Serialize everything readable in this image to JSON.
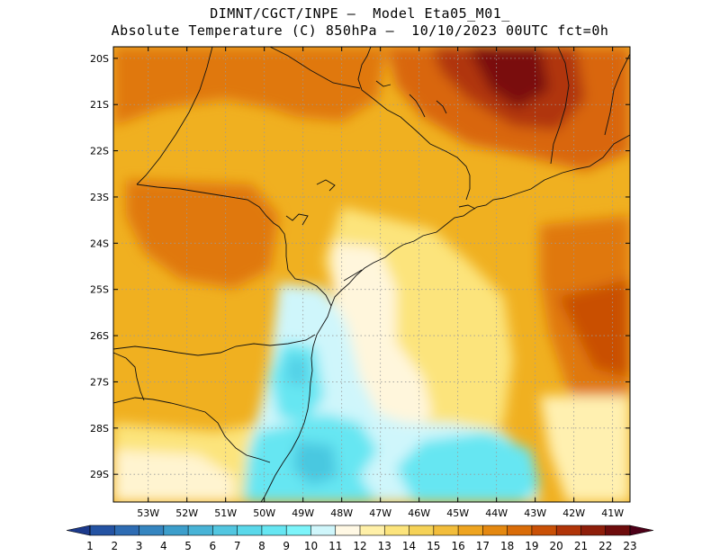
{
  "header": {
    "line1": "DIMNT/CGCT/INPE —  Model Eta05_M01_",
    "line2": "Absolute Temperature (C) 850hPa —  10/10/2023 00UTC fct=0h"
  },
  "map": {
    "lon_range": [
      -53.9,
      -40.55
    ],
    "lat_range": [
      -29.6,
      -19.75
    ],
    "lon_ticks": [
      {
        "lon": -53,
        "label": "53W"
      },
      {
        "lon": -52,
        "label": "52W"
      },
      {
        "lon": -51,
        "label": "51W"
      },
      {
        "lon": -50,
        "label": "50W"
      },
      {
        "lon": -49,
        "label": "49W"
      },
      {
        "lon": -48,
        "label": "48W"
      },
      {
        "lon": -47,
        "label": "47W"
      },
      {
        "lon": -46,
        "label": "46W"
      },
      {
        "lon": -45,
        "label": "45W"
      },
      {
        "lon": -44,
        "label": "44W"
      },
      {
        "lon": -43,
        "label": "43W"
      },
      {
        "lon": -42,
        "label": "42W"
      },
      {
        "lon": -41,
        "label": "41W"
      }
    ],
    "lat_ticks": [
      {
        "lat": -20,
        "label": "20S"
      },
      {
        "lat": -21,
        "label": "21S"
      },
      {
        "lat": -22,
        "label": "22S"
      },
      {
        "lat": -23,
        "label": "23S"
      },
      {
        "lat": -24,
        "label": "24S"
      },
      {
        "lat": -25,
        "label": "25S"
      },
      {
        "lat": -26,
        "label": "26S"
      },
      {
        "lat": -27,
        "label": "27S"
      },
      {
        "lat": -28,
        "label": "28S"
      },
      {
        "lat": -29,
        "label": "29S"
      }
    ],
    "grid_lines": "dotted",
    "background_color": "#f0b020"
  },
  "colorbar": {
    "labels": [
      "1",
      "2",
      "3",
      "4",
      "5",
      "6",
      "7",
      "8",
      "9",
      "10",
      "11",
      "12",
      "13",
      "14",
      "15",
      "16",
      "17",
      "18",
      "19",
      "20",
      "21",
      "22",
      "23"
    ],
    "colors": [
      "#1c3a8c",
      "#2453a3",
      "#2e6cb3",
      "#3585c0",
      "#3c9ecb",
      "#48b3d6",
      "#52c6e0",
      "#5ad8ea",
      "#66e6f2",
      "#7cf4fa",
      "#cff6fb",
      "#fff8e4",
      "#fff0a8",
      "#fce47c",
      "#f5d257",
      "#f2bd3b",
      "#eea420",
      "#e48810",
      "#d96c08",
      "#c95006",
      "#b03408",
      "#8e1e0a",
      "#6e0c0c",
      "#4d0018"
    ],
    "left_arrow_color": "#1c3a8c",
    "right_arrow_color": "#4d0018"
  }
}
